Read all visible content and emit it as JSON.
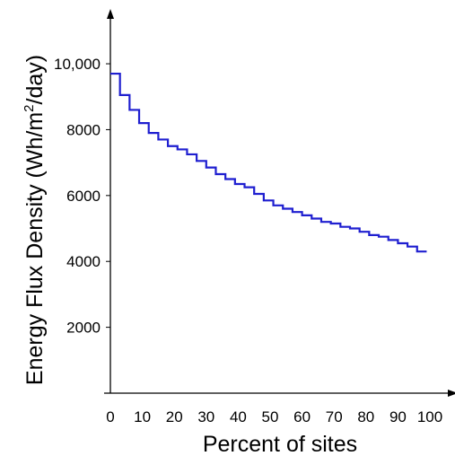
{
  "chart_data": {
    "type": "line",
    "step": true,
    "xlabel": "Percent of sites",
    "ylabel_prefix": "Energy Flux Density (Wh/m",
    "ylabel_sup": "2",
    "ylabel_suffix": "/day)",
    "xlim": [
      0,
      100
    ],
    "ylim": [
      0,
      11500
    ],
    "x_ticks": [
      {
        "value": 0,
        "label": "0"
      },
      {
        "value": 10,
        "label": "10"
      },
      {
        "value": 20,
        "label": "20"
      },
      {
        "value": 30,
        "label": "30"
      },
      {
        "value": 40,
        "label": "40"
      },
      {
        "value": 50,
        "label": "50"
      },
      {
        "value": 60,
        "label": "60"
      },
      {
        "value": 70,
        "label": "70"
      },
      {
        "value": 80,
        "label": "80"
      },
      {
        "value": 90,
        "label": "90"
      },
      {
        "value": 100,
        "label": "100"
      }
    ],
    "y_ticks": [
      {
        "value": 2000,
        "label": "2000"
      },
      {
        "value": 4000,
        "label": "4000"
      },
      {
        "value": 6000,
        "label": "6000"
      },
      {
        "value": 8000,
        "label": "8000"
      },
      {
        "value": 10000,
        "label": "10,000"
      }
    ],
    "grid": false,
    "color": "#1f1fd0",
    "x": [
      0,
      3,
      6,
      9,
      12,
      15,
      18,
      21,
      24,
      27,
      30,
      33,
      36,
      39,
      42,
      45,
      48,
      51,
      54,
      57,
      60,
      63,
      66,
      69,
      72,
      75,
      78,
      81,
      84,
      87,
      90,
      93,
      96
    ],
    "y": [
      9700,
      9050,
      8600,
      8200,
      7900,
      7700,
      7500,
      7400,
      7250,
      7050,
      6850,
      6650,
      6500,
      6350,
      6250,
      6050,
      5850,
      5700,
      5600,
      5500,
      5400,
      5300,
      5200,
      5150,
      5050,
      5000,
      4900,
      4800,
      4750,
      4650,
      4550,
      4450,
      4300
    ],
    "x_end": 99
  }
}
